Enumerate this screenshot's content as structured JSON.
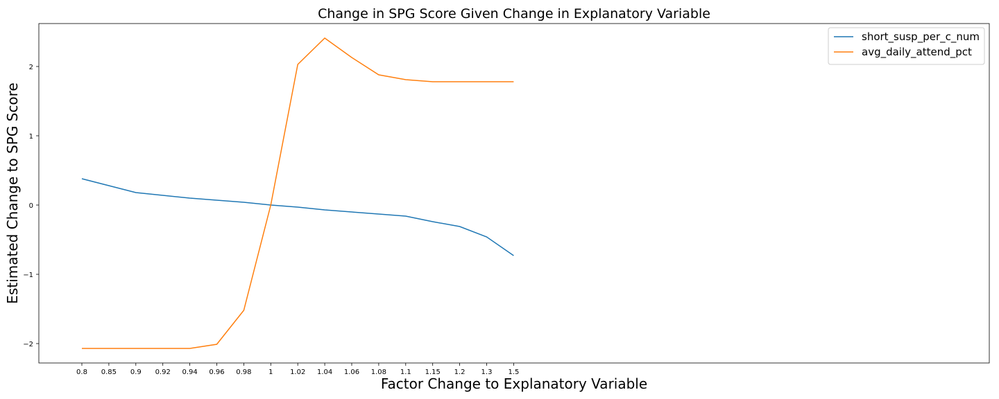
{
  "chart_data": {
    "type": "line",
    "title": "Change in SPG Score Given Change in Explanatory Variable",
    "xlabel": "Factor Change to Explanatory Variable",
    "ylabel": "Estimated Change to SPG Score",
    "categories": [
      "0.8",
      "0.85",
      "0.9",
      "0.92",
      "0.94",
      "0.96",
      "0.98",
      "1",
      "1.02",
      "1.04",
      "1.06",
      "1.08",
      "1.1",
      "1.15",
      "1.2",
      "1.3",
      "1.5"
    ],
    "x_ticks": [
      "0.8",
      "0.85",
      "0.9",
      "0.92",
      "0.94",
      "0.96",
      "0.98",
      "1",
      "1.02",
      "1.04",
      "1.06",
      "1.08",
      "1.1",
      "1.15",
      "1.2",
      "1.3",
      "1.5"
    ],
    "y_ticks": [
      -2,
      -1,
      0,
      1,
      2
    ],
    "y_tick_labels": [
      "−2",
      "−1",
      "0",
      "1",
      "2"
    ],
    "ylim": [
      -2.28,
      2.62
    ],
    "grid": false,
    "legend_position": "top-right",
    "series": [
      {
        "name": "short_susp_per_c_num",
        "color": "#1f77b4",
        "values": [
          0.38,
          0.28,
          0.18,
          0.14,
          0.1,
          0.07,
          0.04,
          0.0,
          -0.03,
          -0.07,
          -0.1,
          -0.13,
          -0.16,
          -0.24,
          -0.31,
          -0.46,
          -0.73
        ]
      },
      {
        "name": "avg_daily_attend_pct",
        "color": "#ff7f0e",
        "values": [
          -2.07,
          -2.07,
          -2.07,
          -2.07,
          -2.07,
          -2.01,
          -1.52,
          0.0,
          2.03,
          2.41,
          2.13,
          1.88,
          1.81,
          1.78,
          1.78,
          1.78,
          1.78
        ]
      }
    ]
  }
}
